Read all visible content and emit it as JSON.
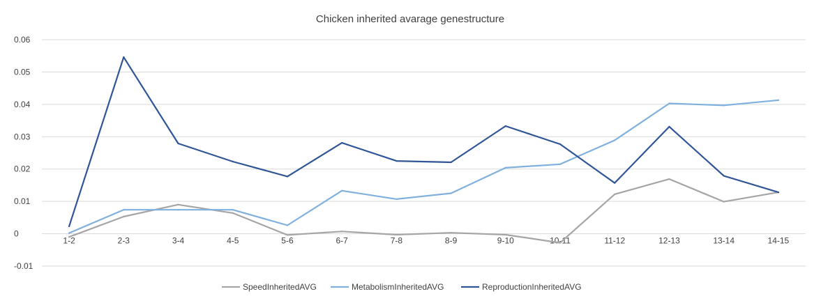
{
  "chart_data": {
    "type": "line",
    "title": "Chicken inherited avarage genestructure",
    "xlabel": "",
    "ylabel": "",
    "categories": [
      "1-2",
      "2-3",
      "3-4",
      "4-5",
      "5-6",
      "6-7",
      "7-8",
      "8-9",
      "9-10",
      "10-11",
      "11-12",
      "12-13",
      "13-14",
      "14-15"
    ],
    "ylim": [
      -0.01,
      0.06
    ],
    "yticks": [
      -0.01,
      0,
      0.01,
      0.02,
      0.03,
      0.04,
      0.05,
      0.06
    ],
    "ytick_labels": [
      "-0.01",
      "0",
      "0.01",
      "0.02",
      "0.03",
      "0.04",
      "0.05",
      "0.06"
    ],
    "grid": true,
    "legend_position": "bottom",
    "series": [
      {
        "name": "SpeedInheritedAVG",
        "color": "#a5a5a5",
        "values": [
          -0.001,
          0.0053,
          0.009,
          0.0064,
          -0.0004,
          0.0007,
          -0.0003,
          0.0003,
          -0.0003,
          -0.0028,
          0.0122,
          0.0169,
          0.0099,
          0.0128
        ]
      },
      {
        "name": "MetabolismInheritedAVG",
        "color": "#7fb0de",
        "values": [
          0.0002,
          0.0074,
          0.0074,
          0.0074,
          0.0026,
          0.0133,
          0.0107,
          0.0125,
          0.0204,
          0.0215,
          0.0289,
          0.0403,
          0.0397,
          0.0413
        ]
      },
      {
        "name": "ReproductionInheritedAVG",
        "color": "#2f5597",
        "values": [
          0.0023,
          0.0546,
          0.0279,
          0.0223,
          0.0177,
          0.0281,
          0.0225,
          0.0221,
          0.0333,
          0.0277,
          0.0157,
          0.0331,
          0.0179,
          0.0128
        ]
      }
    ]
  }
}
